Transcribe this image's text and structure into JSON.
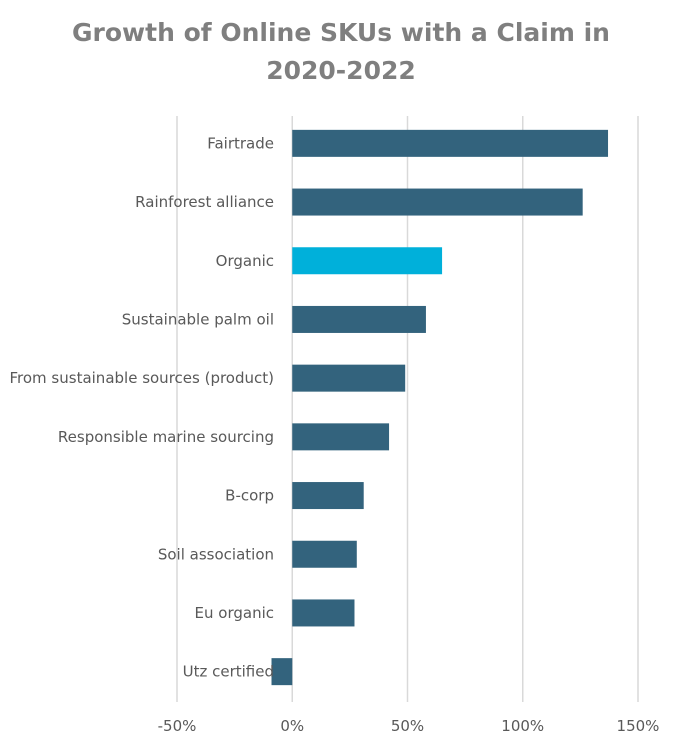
{
  "chart_data": {
    "type": "bar",
    "orientation": "horizontal",
    "title_lines": [
      "Growth of Online SKUs with a Claim in",
      "2020-2022"
    ],
    "categories": [
      "Fairtrade",
      "Rainforest alliance",
      "Organic",
      "Sustainable palm oil",
      "From sustainable sources (product)",
      "Responsible marine sourcing",
      "B-corp",
      "Soil association",
      "Eu organic",
      "Utz certified"
    ],
    "values": [
      137,
      126,
      65,
      58,
      49,
      42,
      31,
      28,
      27,
      -9
    ],
    "xlim": [
      -50,
      150
    ],
    "xticks": [
      -50,
      0,
      50,
      100,
      150
    ],
    "tick_suffix": "%",
    "grid": "vertical",
    "colors": {
      "default": "#33637d",
      "highlight": "#00b0da"
    },
    "highlight_category": "Organic"
  }
}
